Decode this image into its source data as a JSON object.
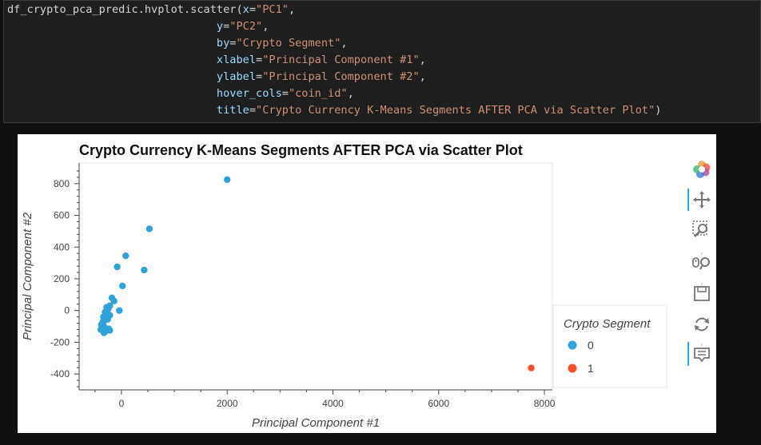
{
  "code": {
    "lines": [
      [
        [
          "plain",
          "df_crypto_pca_predic.hvplot.scatter("
        ],
        [
          "key",
          "x"
        ],
        [
          "op",
          "="
        ],
        [
          "str",
          "\"PC1\""
        ],
        [
          "plain",
          ","
        ]
      ],
      [
        [
          "plain",
          "                                "
        ],
        [
          "key",
          "y"
        ],
        [
          "op",
          "="
        ],
        [
          "str",
          "\"PC2\""
        ],
        [
          "plain",
          ","
        ]
      ],
      [
        [
          "plain",
          "                                "
        ],
        [
          "key",
          "by"
        ],
        [
          "op",
          "="
        ],
        [
          "str",
          "\"Crypto Segment\""
        ],
        [
          "plain",
          ","
        ]
      ],
      [
        [
          "plain",
          "                                "
        ],
        [
          "key",
          "xlabel"
        ],
        [
          "op",
          "="
        ],
        [
          "str",
          "\"Principal Component #1\""
        ],
        [
          "plain",
          ","
        ]
      ],
      [
        [
          "plain",
          "                                "
        ],
        [
          "key",
          "ylabel"
        ],
        [
          "op",
          "="
        ],
        [
          "str",
          "\"Principal Component #2\""
        ],
        [
          "plain",
          ","
        ]
      ],
      [
        [
          "plain",
          "                                "
        ],
        [
          "key",
          "hover_cols"
        ],
        [
          "op",
          "="
        ],
        [
          "str",
          "\"coin_id\""
        ],
        [
          "plain",
          ","
        ]
      ],
      [
        [
          "plain",
          "                                "
        ],
        [
          "key",
          "title"
        ],
        [
          "op",
          "="
        ],
        [
          "str",
          "\"Crypto Currency K-Means Segments AFTER PCA via Scatter Plot\""
        ],
        [
          "plain",
          ")"
        ]
      ]
    ]
  },
  "chart_data": {
    "type": "scatter",
    "title": "Crypto Currency K-Means Segments AFTER PCA via Scatter Plot",
    "xlabel": "Principal Component #1",
    "ylabel": "Principal Component #2",
    "xlim": [
      -800,
      8150
    ],
    "ylim": [
      -500,
      930
    ],
    "xticks": [
      0,
      2000,
      4000,
      6000,
      8000
    ],
    "yticks": [
      -400,
      -200,
      0,
      200,
      400,
      600,
      800
    ],
    "grid": false,
    "legend": {
      "title": "Crypto Segment",
      "placement": "right"
    },
    "series": [
      {
        "name": "0",
        "color": "#30a2da",
        "points": [
          [
            2000,
            825
          ],
          [
            530,
            515
          ],
          [
            80,
            345
          ],
          [
            -80,
            275
          ],
          [
            430,
            255
          ],
          [
            20,
            155
          ],
          [
            -180,
            80
          ],
          [
            -140,
            60
          ],
          [
            -220,
            30
          ],
          [
            -280,
            20
          ],
          [
            -250,
            10
          ],
          [
            -310,
            -10
          ],
          [
            -40,
            0
          ],
          [
            -260,
            -20
          ],
          [
            -300,
            -30
          ],
          [
            -340,
            -40
          ],
          [
            -220,
            -30
          ],
          [
            -260,
            -55
          ],
          [
            -310,
            -60
          ],
          [
            -350,
            -70
          ],
          [
            -360,
            -80
          ],
          [
            -380,
            -90
          ],
          [
            -330,
            -100
          ],
          [
            -370,
            -110
          ],
          [
            -390,
            -120
          ],
          [
            -300,
            -130
          ],
          [
            -330,
            -140
          ],
          [
            -240,
            -115
          ],
          [
            -220,
            -125
          ]
        ]
      },
      {
        "name": "1",
        "color": "#fc4f30",
        "points": [
          [
            7750,
            -362
          ]
        ]
      }
    ]
  },
  "toolbar": {
    "tools": [
      {
        "icon": "bokeh-logo-icon",
        "active": false
      },
      {
        "icon": "pan-icon",
        "active": true
      },
      {
        "icon": "box-zoom-icon",
        "active": false
      },
      {
        "icon": "wheel-zoom-icon",
        "active": false
      },
      {
        "icon": "save-icon",
        "active": false
      },
      {
        "icon": "reset-icon",
        "active": false
      },
      {
        "icon": "hover-icon",
        "active": true
      }
    ]
  }
}
